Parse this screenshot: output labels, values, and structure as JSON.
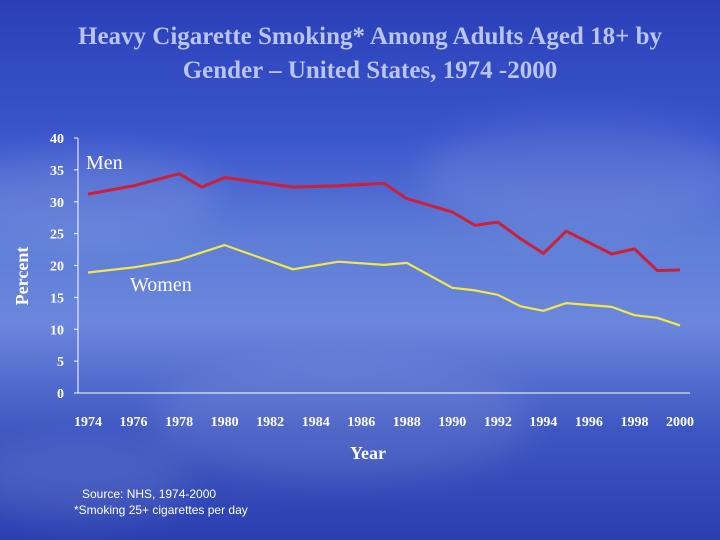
{
  "slide": {
    "title": "Heavy Cigarette Smoking* Among Adults Aged 18+ by Gender – United States, 1974 -2000",
    "source": "Source: NHS, 1974-2000",
    "footnote": "*Smoking 25+ cigarettes per day"
  },
  "colors": {
    "men": "#cc1f3a",
    "women": "#f2e84a",
    "axis": "#ffffff"
  },
  "chart_data": {
    "type": "line",
    "title": "Heavy Cigarette Smoking* Among Adults Aged 18+ by Gender – United States, 1974 -2000",
    "xlabel": "Year",
    "ylabel": "Percent",
    "xlim": [
      1974,
      2000
    ],
    "ylim": [
      0,
      40
    ],
    "x_ticks": [
      "1974",
      "1976",
      "1978",
      "1980",
      "1982",
      "1984",
      "1986",
      "1988",
      "1990",
      "1992",
      "1994",
      "1996",
      "1998",
      "2000"
    ],
    "y_ticks": [
      "0",
      "5",
      "10",
      "15",
      "20",
      "25",
      "30",
      "35",
      "40"
    ],
    "grid": false,
    "series": [
      {
        "name": "Men",
        "points": [
          [
            1974,
            31.2
          ],
          [
            1976,
            32.5
          ],
          [
            1978,
            34.4
          ],
          [
            1979,
            32.3
          ],
          [
            1980,
            33.8
          ],
          [
            1983,
            32.3
          ],
          [
            1985,
            32.5
          ],
          [
            1987,
            32.9
          ],
          [
            1988,
            30.5
          ],
          [
            1990,
            28.4
          ],
          [
            1991,
            26.3
          ],
          [
            1992,
            26.8
          ],
          [
            1993,
            24.2
          ],
          [
            1994,
            21.9
          ],
          [
            1995,
            25.4
          ],
          [
            1997,
            21.8
          ],
          [
            1998,
            22.6
          ],
          [
            1999,
            19.2
          ],
          [
            2000,
            19.3
          ]
        ]
      },
      {
        "name": "Women",
        "points": [
          [
            1974,
            18.9
          ],
          [
            1976,
            19.7
          ],
          [
            1978,
            20.9
          ],
          [
            1980,
            23.2
          ],
          [
            1983,
            19.4
          ],
          [
            1985,
            20.6
          ],
          [
            1987,
            20.1
          ],
          [
            1988,
            20.4
          ],
          [
            1990,
            16.5
          ],
          [
            1991,
            16.1
          ],
          [
            1992,
            15.4
          ],
          [
            1993,
            13.6
          ],
          [
            1994,
            12.9
          ],
          [
            1995,
            14.1
          ],
          [
            1997,
            13.5
          ],
          [
            1998,
            12.2
          ],
          [
            1999,
            11.8
          ],
          [
            2000,
            10.6
          ]
        ]
      }
    ]
  }
}
